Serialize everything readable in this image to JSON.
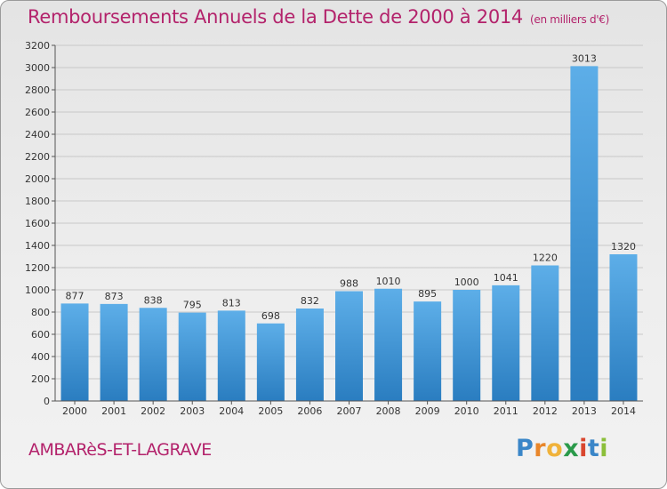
{
  "title": "Remboursements Annuels de la Dette de 2000 à 2014",
  "unit": "(en milliers d'€)",
  "commune": "AMBARèS-ET-LAGRAVE",
  "logo": {
    "p": "P",
    "r": "r",
    "o": "o",
    "x": "x",
    "i1": "i",
    "t": "t",
    "i2": "i"
  },
  "colors": {
    "title": "#b3226b",
    "bar_top": "#5daee8",
    "bar_bottom": "#2a7dc0",
    "grid": "#c8c8c8"
  },
  "chart_data": {
    "type": "bar",
    "title": "Remboursements Annuels de la Dette de 2000 à 2014",
    "xlabel": "",
    "ylabel": "",
    "ylim": [
      0,
      3200
    ],
    "yticks": [
      0,
      200,
      400,
      600,
      800,
      1000,
      1200,
      1400,
      1600,
      1800,
      2000,
      2200,
      2400,
      2600,
      2800,
      3000,
      3200
    ],
    "categories": [
      "2000",
      "2001",
      "2002",
      "2003",
      "2004",
      "2005",
      "2006",
      "2007",
      "2008",
      "2009",
      "2010",
      "2011",
      "2012",
      "2013",
      "2014"
    ],
    "values": [
      877,
      873,
      838,
      795,
      813,
      698,
      832,
      988,
      1010,
      895,
      1000,
      1041,
      1220,
      3013,
      1320
    ],
    "grid": true
  }
}
